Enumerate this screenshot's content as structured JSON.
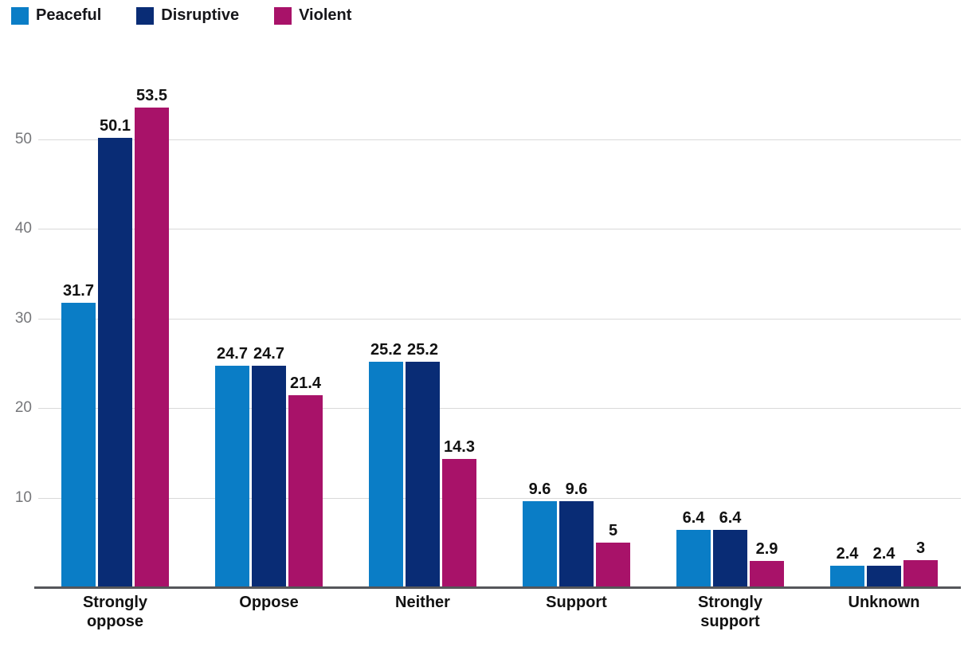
{
  "chart_data": {
    "type": "bar",
    "title": "",
    "categories": [
      "Strongly oppose",
      "Oppose",
      "Neither",
      "Support",
      "Strongly support",
      "Unknown"
    ],
    "series": [
      {
        "name": "Peaceful",
        "color": "#0a7dc6",
        "values": [
          31.7,
          24.7,
          25.2,
          9.6,
          6.4,
          2.4
        ]
      },
      {
        "name": "Disruptive",
        "color": "#092c75",
        "values": [
          50.1,
          24.7,
          25.2,
          9.6,
          6.4,
          2.4
        ]
      },
      {
        "name": "Violent",
        "color": "#a81269",
        "values": [
          53.5,
          21.4,
          14.3,
          5,
          2.9,
          3
        ]
      }
    ],
    "y_ticks": [
      10,
      20,
      30,
      40,
      50
    ],
    "ylim": [
      0,
      56
    ],
    "grid": true,
    "data_labels": true,
    "legend_position": "top-left",
    "style_colors": {
      "background": "#ffffff",
      "grid_line": "#d9d9d9",
      "axis_line": "#55565a",
      "tick_text": "#76777a",
      "label_text": "#121212"
    }
  }
}
